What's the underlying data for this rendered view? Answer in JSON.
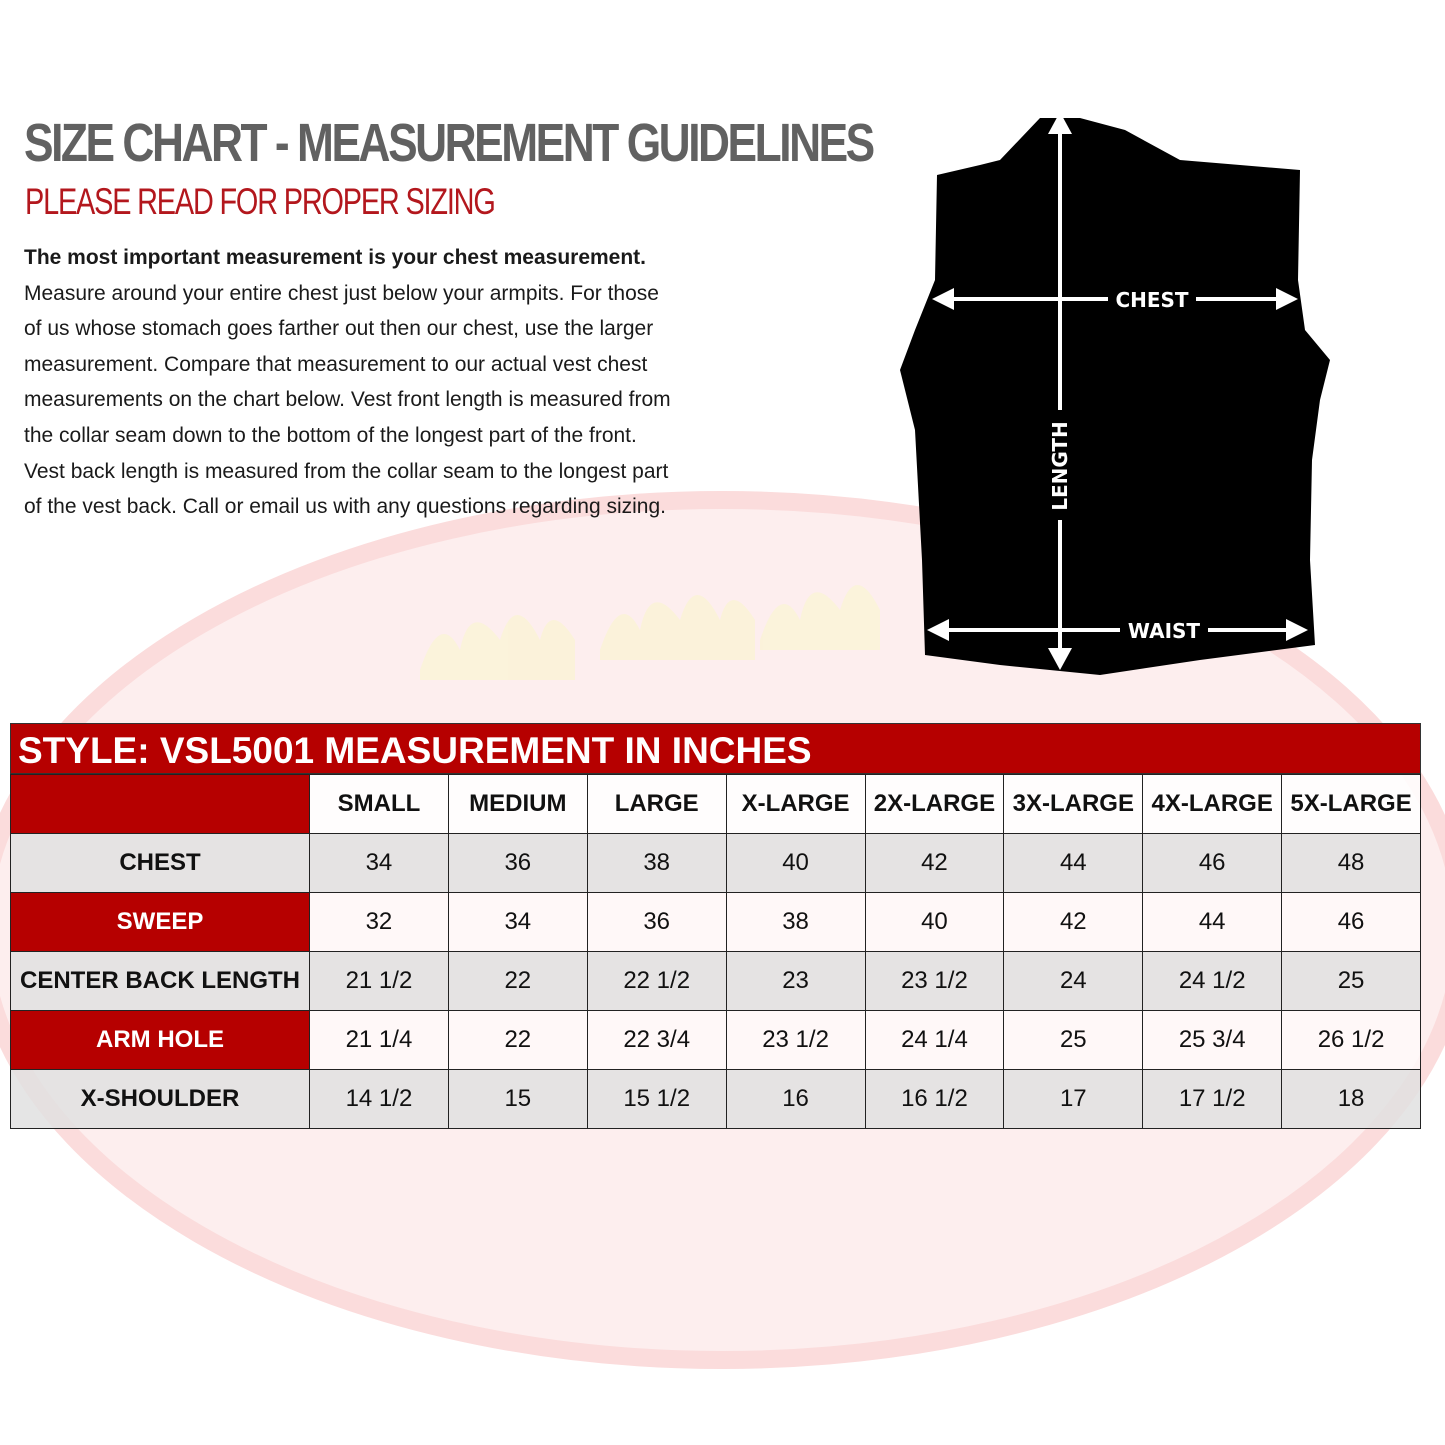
{
  "header": {
    "title": "SIZE CHART - MEASUREMENT GUIDELINES",
    "subtitle": "PLEASE READ FOR PROPER SIZING"
  },
  "instructions": {
    "lines": [
      "The most important measurement is your chest measurement.",
      "Measure around your entire chest just below your armpits.  For those",
      "of us whose stomach goes farther out then our chest, use the larger",
      "measurement. Compare that measurement to our actual vest chest",
      "measurements on the chart below.  Vest front length is measured from",
      "the collar seam down to the bottom of the longest part of the front.",
      "Vest back length is measured from the collar seam to the longest part",
      "of the vest back.  Call or email us with any questions regarding sizing."
    ]
  },
  "diagram": {
    "chest_label": "CHEST",
    "length_label": "LENGTH",
    "waist_label": "WAIST"
  },
  "watermark": {
    "text": "HOT LEATHERS"
  },
  "colors": {
    "accent_red": "#b60000",
    "title_gray": "#616161",
    "subtitle_red": "#b3171d"
  },
  "table": {
    "title": "STYLE: VSL5001 MEASUREMENT IN INCHES",
    "columns": [
      "SMALL",
      "MEDIUM",
      "LARGE",
      "X-LARGE",
      "2X-LARGE",
      "3X-LARGE",
      "4X-LARGE",
      "5X-LARGE"
    ],
    "rows": [
      {
        "label": "CHEST",
        "values": [
          "34",
          "36",
          "38",
          "40",
          "42",
          "44",
          "46",
          "48"
        ]
      },
      {
        "label": "SWEEP",
        "values": [
          "32",
          "34",
          "36",
          "38",
          "40",
          "42",
          "44",
          "46"
        ]
      },
      {
        "label": "CENTER BACK LENGTH",
        "values": [
          "21 1/2",
          "22",
          "22 1/2",
          "23",
          "23 1/2",
          "24",
          "24 1/2",
          "25"
        ]
      },
      {
        "label": "ARM HOLE",
        "values": [
          "21 1/4",
          "22",
          "22 3/4",
          "23 1/2",
          "24 1/4",
          "25",
          "25 3/4",
          "26 1/2"
        ]
      },
      {
        "label": "X-SHOULDER",
        "values": [
          "14 1/2",
          "15",
          "15 1/2",
          "16",
          "16 1/2",
          "17",
          "17 1/2",
          "18"
        ]
      }
    ]
  }
}
